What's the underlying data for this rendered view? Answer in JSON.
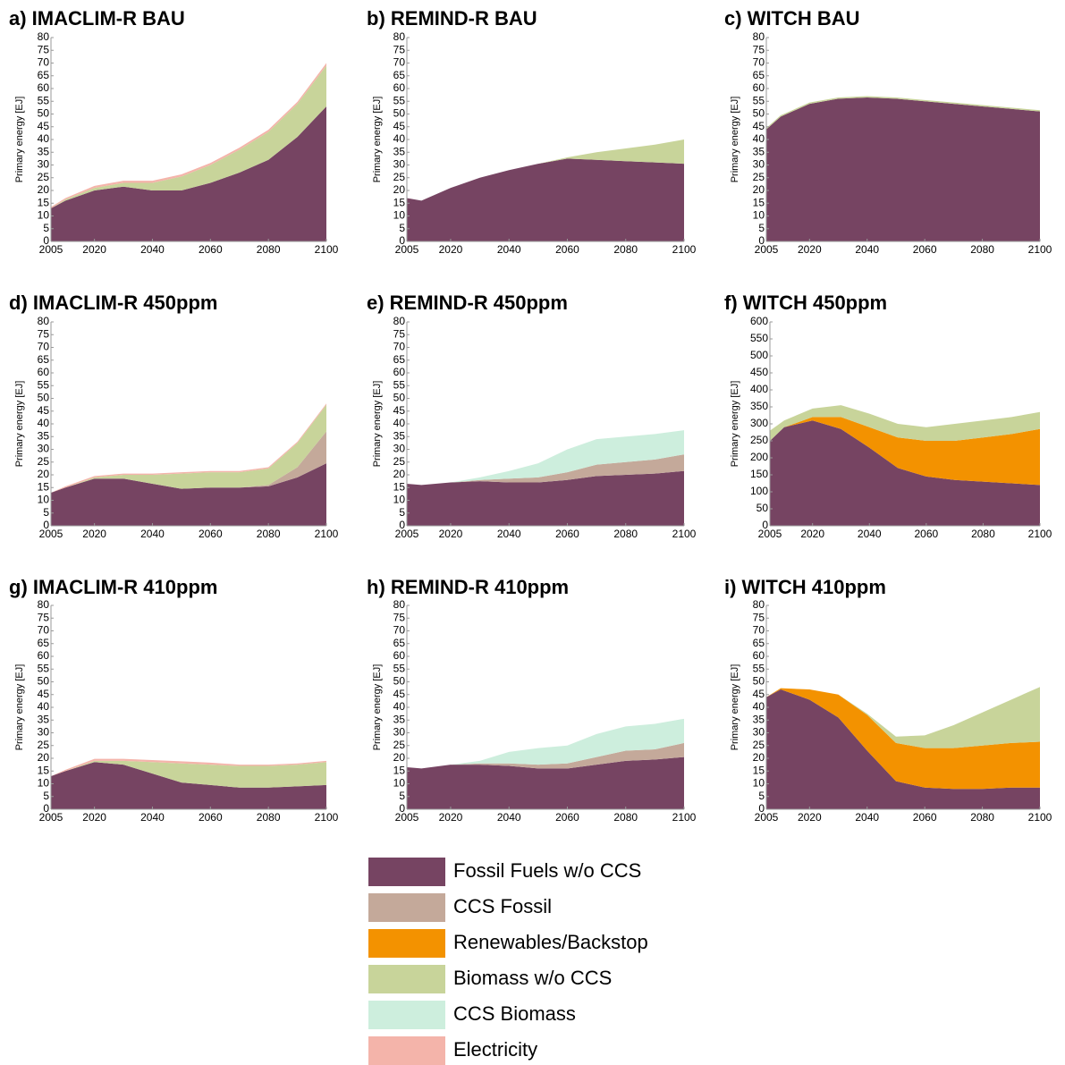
{
  "chart_data": [
    {
      "type": "area",
      "title": "a) IMACLIM-R BAU",
      "ylabel": "Primary energy [EJ]",
      "x": [
        2005,
        2010,
        2020,
        2030,
        2040,
        2050,
        2060,
        2070,
        2080,
        2090,
        2100
      ],
      "xlim": [
        2005,
        2100
      ],
      "xticks": [
        2005,
        2020,
        2040,
        2060,
        2080,
        2100
      ],
      "ylim": [
        0,
        80
      ],
      "yticks": [
        0,
        5,
        10,
        15,
        20,
        25,
        30,
        35,
        40,
        45,
        50,
        55,
        60,
        65,
        70,
        75,
        80
      ],
      "series": [
        {
          "name": "Fossil Fuels w/o CCS",
          "values": [
            13,
            16,
            20,
            21.5,
            20,
            20,
            23,
            27,
            32,
            41,
            53
          ]
        },
        {
          "name": "Biomass w/o CCS",
          "values": [
            0,
            0.5,
            1,
            1.5,
            3,
            5.5,
            7,
            9,
            11,
            13,
            16
          ]
        },
        {
          "name": "Electricity",
          "values": [
            0.5,
            0.5,
            0.8,
            0.8,
            0.8,
            0.8,
            0.8,
            0.8,
            0.8,
            0.8,
            1
          ]
        }
      ]
    },
    {
      "type": "area",
      "title": "b) REMIND-R BAU",
      "ylabel": "Primary energy [EJ]",
      "x": [
        2005,
        2010,
        2020,
        2030,
        2040,
        2050,
        2060,
        2070,
        2080,
        2090,
        2100
      ],
      "xlim": [
        2005,
        2100
      ],
      "xticks": [
        2005,
        2020,
        2040,
        2060,
        2080,
        2100
      ],
      "ylim": [
        0,
        80
      ],
      "yticks": [
        0,
        5,
        10,
        15,
        20,
        25,
        30,
        35,
        40,
        45,
        50,
        55,
        60,
        65,
        70,
        75,
        80
      ],
      "series": [
        {
          "name": "Fossil Fuels w/o CCS",
          "values": [
            17,
            16,
            21,
            25,
            28,
            30.5,
            32.5,
            32,
            31.5,
            31,
            30.5
          ]
        },
        {
          "name": "Biomass w/o CCS",
          "values": [
            0,
            0,
            0,
            0,
            0,
            0,
            0.5,
            3,
            5,
            7,
            9.5
          ]
        }
      ]
    },
    {
      "type": "area",
      "title": "c) WITCH BAU",
      "ylabel": "Primary energy [EJ]",
      "x": [
        2005,
        2010,
        2020,
        2030,
        2040,
        2050,
        2060,
        2070,
        2080,
        2090,
        2100
      ],
      "xlim": [
        2005,
        2100
      ],
      "xticks": [
        2005,
        2020,
        2040,
        2060,
        2080,
        2100
      ],
      "ylim": [
        0,
        80
      ],
      "yticks": [
        0,
        5,
        10,
        15,
        20,
        25,
        30,
        35,
        40,
        45,
        50,
        55,
        60,
        65,
        70,
        75,
        80
      ],
      "series": [
        {
          "name": "Fossil Fuels w/o CCS",
          "values": [
            44,
            49,
            54,
            56,
            56.5,
            56,
            55,
            54,
            53,
            52,
            51
          ]
        },
        {
          "name": "Biomass w/o CCS",
          "values": [
            0.5,
            0.5,
            0.5,
            0.5,
            0.5,
            0.5,
            0.5,
            0.5,
            0.5,
            0.5,
            0.5
          ]
        }
      ]
    },
    {
      "type": "area",
      "title": "d) IMACLIM-R 450ppm",
      "ylabel": "Primary energy [EJ]",
      "x": [
        2005,
        2010,
        2020,
        2030,
        2040,
        2050,
        2060,
        2070,
        2080,
        2090,
        2100
      ],
      "xlim": [
        2005,
        2100
      ],
      "xticks": [
        2005,
        2020,
        2040,
        2060,
        2080,
        2100
      ],
      "ylim": [
        0,
        80
      ],
      "yticks": [
        0,
        5,
        10,
        15,
        20,
        25,
        30,
        35,
        40,
        45,
        50,
        55,
        60,
        65,
        70,
        75,
        80
      ],
      "series": [
        {
          "name": "Fossil Fuels w/o CCS",
          "values": [
            13,
            15,
            18.5,
            18.5,
            16.5,
            14.5,
            15,
            15,
            15.5,
            19,
            24.5
          ]
        },
        {
          "name": "CCS Fossil",
          "values": [
            0,
            0,
            0,
            0,
            0,
            0,
            0,
            0,
            0.5,
            4,
            12.5
          ]
        },
        {
          "name": "Biomass w/o CCS",
          "values": [
            0,
            0,
            0.5,
            1.5,
            3.5,
            6,
            6,
            6,
            6.5,
            9.5,
            10.5
          ]
        },
        {
          "name": "Electricity",
          "values": [
            0,
            0.5,
            0.5,
            0.5,
            0.5,
            0.5,
            0.5,
            0.5,
            0.5,
            0.5,
            0.5
          ]
        }
      ]
    },
    {
      "type": "area",
      "title": "e) REMIND-R 450ppm",
      "ylabel": "Primary energy [EJ]",
      "x": [
        2005,
        2010,
        2020,
        2030,
        2040,
        2050,
        2060,
        2070,
        2080,
        2090,
        2100
      ],
      "xlim": [
        2005,
        2100
      ],
      "xticks": [
        2005,
        2020,
        2040,
        2060,
        2080,
        2100
      ],
      "ylim": [
        0,
        80
      ],
      "yticks": [
        0,
        5,
        10,
        15,
        20,
        25,
        30,
        35,
        40,
        45,
        50,
        55,
        60,
        65,
        70,
        75,
        80
      ],
      "series": [
        {
          "name": "Fossil Fuels w/o CCS",
          "values": [
            16.5,
            16,
            17,
            17.5,
            17,
            17,
            18,
            19.5,
            20,
            20.5,
            21.5
          ]
        },
        {
          "name": "CCS Fossil",
          "values": [
            0,
            0,
            0,
            0.5,
            1.5,
            2,
            3,
            4.5,
            5,
            5.5,
            6.5
          ]
        },
        {
          "name": "CCS Biomass",
          "values": [
            0,
            0,
            0,
            1,
            3,
            5.5,
            9,
            10,
            10,
            10,
            9.5
          ]
        }
      ]
    },
    {
      "type": "area",
      "title": "f) WITCH 450ppm",
      "ylabel": "Primary energy [EJ]",
      "x": [
        2005,
        2010,
        2020,
        2030,
        2040,
        2050,
        2060,
        2070,
        2080,
        2090,
        2100
      ],
      "xlim": [
        2005,
        2100
      ],
      "xticks": [
        2005,
        2020,
        2040,
        2060,
        2080,
        2100
      ],
      "ylim": [
        0,
        600
      ],
      "yticks": [
        0,
        50,
        100,
        150,
        200,
        250,
        300,
        350,
        400,
        450,
        500,
        550,
        600
      ],
      "series": [
        {
          "name": "Fossil Fuels w/o CCS",
          "values": [
            250,
            290,
            310,
            285,
            230,
            170,
            145,
            135,
            130,
            125,
            120
          ]
        },
        {
          "name": "Renewables/Backstop",
          "values": [
            0,
            0,
            10,
            35,
            60,
            90,
            105,
            115,
            130,
            145,
            165
          ]
        },
        {
          "name": "Biomass w/o CCS",
          "values": [
            30,
            20,
            25,
            35,
            40,
            40,
            40,
            50,
            50,
            50,
            50
          ]
        }
      ]
    },
    {
      "type": "area",
      "title": "g) IMACLIM-R 410ppm",
      "ylabel": "Primary energy [EJ]",
      "x": [
        2005,
        2010,
        2020,
        2030,
        2040,
        2050,
        2060,
        2070,
        2080,
        2090,
        2100
      ],
      "xlim": [
        2005,
        2100
      ],
      "xticks": [
        2005,
        2020,
        2040,
        2060,
        2080,
        2100
      ],
      "ylim": [
        0,
        80
      ],
      "yticks": [
        0,
        5,
        10,
        15,
        20,
        25,
        30,
        35,
        40,
        45,
        50,
        55,
        60,
        65,
        70,
        75,
        80
      ],
      "series": [
        {
          "name": "Fossil Fuels w/o CCS",
          "values": [
            13,
            15,
            18.5,
            17.5,
            14,
            10.5,
            9.5,
            8.5,
            8.5,
            9,
            9.5
          ]
        },
        {
          "name": "Biomass w/o CCS",
          "values": [
            0,
            0,
            0.5,
            1.5,
            4.5,
            7.5,
            8,
            8.5,
            8.5,
            8.5,
            9
          ]
        },
        {
          "name": "Electricity",
          "values": [
            0,
            0.5,
            0.8,
            0.8,
            0.8,
            0.8,
            0.8,
            0.5,
            0.5,
            0.5,
            0.5
          ]
        }
      ]
    },
    {
      "type": "area",
      "title": "h) REMIND-R 410ppm",
      "ylabel": "Primary energy [EJ]",
      "x": [
        2005,
        2010,
        2020,
        2030,
        2040,
        2050,
        2060,
        2070,
        2080,
        2090,
        2100
      ],
      "xlim": [
        2005,
        2100
      ],
      "xticks": [
        2005,
        2020,
        2040,
        2060,
        2080,
        2100
      ],
      "ylim": [
        0,
        80
      ],
      "yticks": [
        0,
        5,
        10,
        15,
        20,
        25,
        30,
        35,
        40,
        45,
        50,
        55,
        60,
        65,
        70,
        75,
        80
      ],
      "series": [
        {
          "name": "Fossil Fuels w/o CCS",
          "values": [
            16.5,
            16,
            17.5,
            17.5,
            17,
            16,
            16,
            17.5,
            19,
            19.5,
            20.5
          ]
        },
        {
          "name": "CCS Fossil",
          "values": [
            0,
            0,
            0,
            0.5,
            1,
            1.5,
            2,
            3,
            4,
            4,
            5.5
          ]
        },
        {
          "name": "CCS Biomass",
          "values": [
            0,
            0,
            0,
            1,
            4.5,
            6.5,
            7,
            9,
            9.5,
            10,
            9.5
          ]
        }
      ]
    },
    {
      "type": "area",
      "title": "i) WITCH 410ppm",
      "ylabel": "Primary energy [EJ]",
      "x": [
        2005,
        2010,
        2020,
        2030,
        2040,
        2050,
        2060,
        2070,
        2080,
        2090,
        2100
      ],
      "xlim": [
        2005,
        2100
      ],
      "xticks": [
        2005,
        2020,
        2040,
        2060,
        2080,
        2100
      ],
      "ylim": [
        0,
        80
      ],
      "yticks": [
        0,
        5,
        10,
        15,
        20,
        25,
        30,
        35,
        40,
        45,
        50,
        55,
        60,
        65,
        70,
        75,
        80
      ],
      "series": [
        {
          "name": "Fossil Fuels w/o CCS",
          "values": [
            44,
            47,
            43,
            36,
            23,
            11,
            8.5,
            8,
            8,
            8.5,
            8.5
          ]
        },
        {
          "name": "Renewables/Backstop",
          "values": [
            0,
            0.5,
            4,
            9,
            14,
            15,
            15.5,
            16,
            17,
            17.5,
            18
          ]
        },
        {
          "name": "Biomass w/o CCS",
          "values": [
            0,
            0,
            0,
            0,
            0.5,
            2.5,
            5,
            9,
            13,
            17,
            21.5
          ]
        }
      ]
    }
  ],
  "legend": [
    {
      "name": "Fossil Fuels w/o CCS",
      "color": "#764462"
    },
    {
      "name": "CCS Fossil",
      "color": "#c4a99a"
    },
    {
      "name": "Renewables/Backstop",
      "color": "#f39200"
    },
    {
      "name": "Biomass w/o CCS",
      "color": "#c8d49a"
    },
    {
      "name": "CCS Biomass",
      "color": "#cdeedd"
    },
    {
      "name": "Electricity",
      "color": "#f4b4aa"
    }
  ]
}
